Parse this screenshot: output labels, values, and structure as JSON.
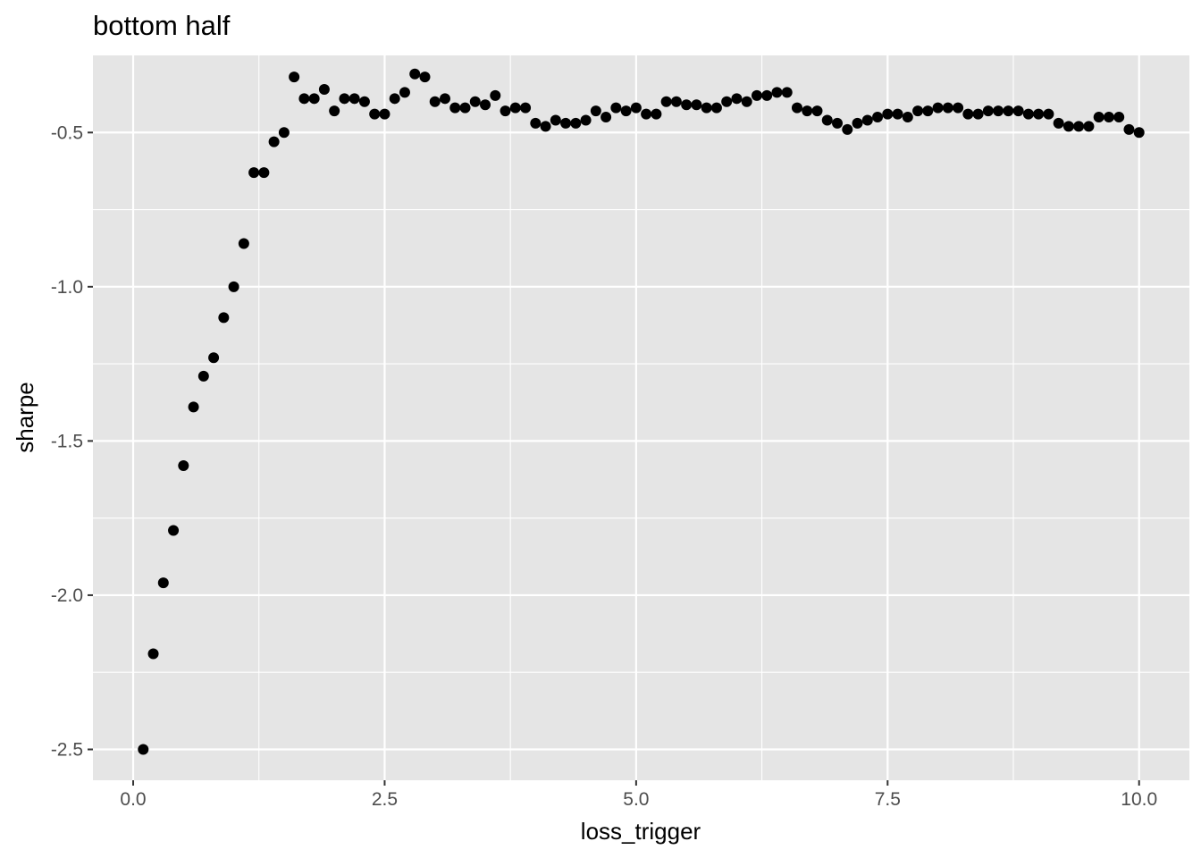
{
  "chart_data": {
    "type": "scatter",
    "title": "bottom half",
    "xlabel": "loss_trigger",
    "ylabel": "sharpe",
    "xlim": [
      -0.4,
      10.5
    ],
    "ylim": [
      -2.6,
      -0.25
    ],
    "x_ticks": [
      {
        "value": 0.0,
        "label": "0.0"
      },
      {
        "value": 2.5,
        "label": "2.5"
      },
      {
        "value": 5.0,
        "label": "5.0"
      },
      {
        "value": 7.5,
        "label": "7.5"
      },
      {
        "value": 10.0,
        "label": "10.0"
      }
    ],
    "y_ticks": [
      {
        "value": -2.5,
        "label": "-2.5"
      },
      {
        "value": -2.0,
        "label": "-2.0"
      },
      {
        "value": -1.5,
        "label": "-1.5"
      },
      {
        "value": -1.0,
        "label": "-1.0"
      },
      {
        "value": -0.5,
        "label": "-0.5"
      }
    ],
    "grid": true,
    "colors": {
      "panel": "#e5e5e5",
      "grid": "#ffffff",
      "point": "#000000"
    },
    "points": [
      {
        "x": 0.1,
        "y": -2.5
      },
      {
        "x": 0.2,
        "y": -2.19
      },
      {
        "x": 0.3,
        "y": -1.96
      },
      {
        "x": 0.4,
        "y": -1.79
      },
      {
        "x": 0.5,
        "y": -1.58
      },
      {
        "x": 0.6,
        "y": -1.39
      },
      {
        "x": 0.7,
        "y": -1.29
      },
      {
        "x": 0.8,
        "y": -1.23
      },
      {
        "x": 0.9,
        "y": -1.1
      },
      {
        "x": 1.0,
        "y": -1.0
      },
      {
        "x": 1.1,
        "y": -0.86
      },
      {
        "x": 1.2,
        "y": -0.63
      },
      {
        "x": 1.3,
        "y": -0.63
      },
      {
        "x": 1.4,
        "y": -0.53
      },
      {
        "x": 1.5,
        "y": -0.5
      },
      {
        "x": 1.6,
        "y": -0.32
      },
      {
        "x": 1.7,
        "y": -0.39
      },
      {
        "x": 1.8,
        "y": -0.39
      },
      {
        "x": 1.9,
        "y": -0.36
      },
      {
        "x": 2.0,
        "y": -0.43
      },
      {
        "x": 2.1,
        "y": -0.39
      },
      {
        "x": 2.2,
        "y": -0.39
      },
      {
        "x": 2.3,
        "y": -0.4
      },
      {
        "x": 2.4,
        "y": -0.44
      },
      {
        "x": 2.5,
        "y": -0.44
      },
      {
        "x": 2.6,
        "y": -0.39
      },
      {
        "x": 2.7,
        "y": -0.37
      },
      {
        "x": 2.8,
        "y": -0.31
      },
      {
        "x": 2.9,
        "y": -0.32
      },
      {
        "x": 3.0,
        "y": -0.4
      },
      {
        "x": 3.1,
        "y": -0.39
      },
      {
        "x": 3.2,
        "y": -0.42
      },
      {
        "x": 3.3,
        "y": -0.42
      },
      {
        "x": 3.4,
        "y": -0.4
      },
      {
        "x": 3.5,
        "y": -0.41
      },
      {
        "x": 3.6,
        "y": -0.38
      },
      {
        "x": 3.7,
        "y": -0.43
      },
      {
        "x": 3.8,
        "y": -0.42
      },
      {
        "x": 3.9,
        "y": -0.42
      },
      {
        "x": 4.0,
        "y": -0.47
      },
      {
        "x": 4.1,
        "y": -0.48
      },
      {
        "x": 4.2,
        "y": -0.46
      },
      {
        "x": 4.3,
        "y": -0.47
      },
      {
        "x": 4.4,
        "y": -0.47
      },
      {
        "x": 4.5,
        "y": -0.46
      },
      {
        "x": 4.6,
        "y": -0.43
      },
      {
        "x": 4.7,
        "y": -0.45
      },
      {
        "x": 4.8,
        "y": -0.42
      },
      {
        "x": 4.9,
        "y": -0.43
      },
      {
        "x": 5.0,
        "y": -0.42
      },
      {
        "x": 5.1,
        "y": -0.44
      },
      {
        "x": 5.2,
        "y": -0.44
      },
      {
        "x": 5.3,
        "y": -0.4
      },
      {
        "x": 5.4,
        "y": -0.4
      },
      {
        "x": 5.5,
        "y": -0.41
      },
      {
        "x": 5.6,
        "y": -0.41
      },
      {
        "x": 5.7,
        "y": -0.42
      },
      {
        "x": 5.8,
        "y": -0.42
      },
      {
        "x": 5.9,
        "y": -0.4
      },
      {
        "x": 6.0,
        "y": -0.39
      },
      {
        "x": 6.1,
        "y": -0.4
      },
      {
        "x": 6.2,
        "y": -0.38
      },
      {
        "x": 6.3,
        "y": -0.38
      },
      {
        "x": 6.4,
        "y": -0.37
      },
      {
        "x": 6.5,
        "y": -0.37
      },
      {
        "x": 6.6,
        "y": -0.42
      },
      {
        "x": 6.7,
        "y": -0.43
      },
      {
        "x": 6.8,
        "y": -0.43
      },
      {
        "x": 6.9,
        "y": -0.46
      },
      {
        "x": 7.0,
        "y": -0.47
      },
      {
        "x": 7.1,
        "y": -0.49
      },
      {
        "x": 7.2,
        "y": -0.47
      },
      {
        "x": 7.3,
        "y": -0.46
      },
      {
        "x": 7.4,
        "y": -0.45
      },
      {
        "x": 7.5,
        "y": -0.44
      },
      {
        "x": 7.6,
        "y": -0.44
      },
      {
        "x": 7.7,
        "y": -0.45
      },
      {
        "x": 7.8,
        "y": -0.43
      },
      {
        "x": 7.9,
        "y": -0.43
      },
      {
        "x": 8.0,
        "y": -0.42
      },
      {
        "x": 8.1,
        "y": -0.42
      },
      {
        "x": 8.2,
        "y": -0.42
      },
      {
        "x": 8.3,
        "y": -0.44
      },
      {
        "x": 8.4,
        "y": -0.44
      },
      {
        "x": 8.5,
        "y": -0.43
      },
      {
        "x": 8.6,
        "y": -0.43
      },
      {
        "x": 8.7,
        "y": -0.43
      },
      {
        "x": 8.8,
        "y": -0.43
      },
      {
        "x": 8.9,
        "y": -0.44
      },
      {
        "x": 9.0,
        "y": -0.44
      },
      {
        "x": 9.1,
        "y": -0.44
      },
      {
        "x": 9.2,
        "y": -0.47
      },
      {
        "x": 9.3,
        "y": -0.48
      },
      {
        "x": 9.4,
        "y": -0.48
      },
      {
        "x": 9.5,
        "y": -0.48
      },
      {
        "x": 9.6,
        "y": -0.45
      },
      {
        "x": 9.7,
        "y": -0.45
      },
      {
        "x": 9.8,
        "y": -0.45
      },
      {
        "x": 9.9,
        "y": -0.49
      },
      {
        "x": 10.0,
        "y": -0.5
      }
    ]
  }
}
